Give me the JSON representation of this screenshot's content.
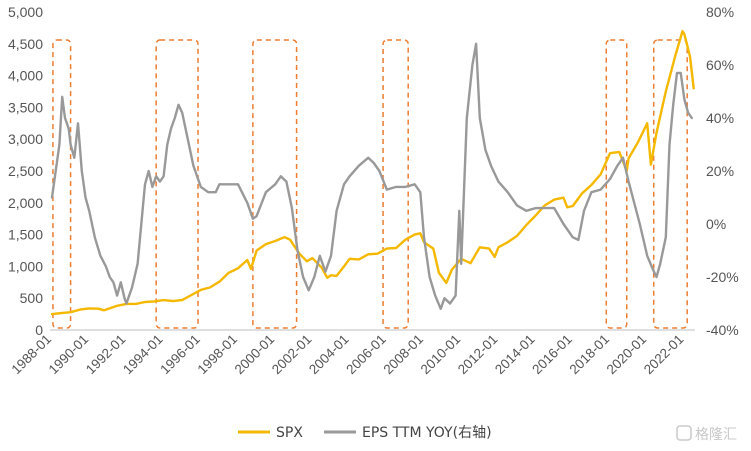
{
  "chart_data": {
    "type": "line",
    "x_ticks": [
      "1988-01",
      "1990-01",
      "1992-01",
      "1994-01",
      "1996-01",
      "1998-01",
      "2000-01",
      "2002-01",
      "2004-01",
      "2006-01",
      "2008-01",
      "2010-01",
      "2012-01",
      "2014-01",
      "2016-01",
      "2018-01",
      "2020-01",
      "2022-01"
    ],
    "y_left": {
      "min": 0,
      "max": 5000,
      "ticks": [
        "0",
        "500",
        "1,000",
        "1,500",
        "2,000",
        "2,500",
        "3,000",
        "3,500",
        "4,000",
        "4,500",
        "5,000"
      ]
    },
    "y_right": {
      "min": -40,
      "max": 80,
      "ticks": [
        "-40%",
        "-20%",
        "0%",
        "20%",
        "40%",
        "60%",
        "80%"
      ]
    },
    "series": [
      {
        "name": "SPX",
        "axis": "left",
        "color": "#F5B800",
        "points": [
          [
            1988.0,
            250
          ],
          [
            1988.5,
            265
          ],
          [
            1989.0,
            280
          ],
          [
            1989.5,
            320
          ],
          [
            1990.0,
            340
          ],
          [
            1990.5,
            335
          ],
          [
            1990.8,
            310
          ],
          [
            1991.0,
            330
          ],
          [
            1991.5,
            380
          ],
          [
            1992.0,
            410
          ],
          [
            1992.5,
            410
          ],
          [
            1993.0,
            440
          ],
          [
            1993.5,
            450
          ],
          [
            1994.0,
            470
          ],
          [
            1994.5,
            455
          ],
          [
            1995.0,
            470
          ],
          [
            1995.5,
            550
          ],
          [
            1996.0,
            630
          ],
          [
            1996.5,
            670
          ],
          [
            1997.0,
            760
          ],
          [
            1997.5,
            900
          ],
          [
            1998.0,
            970
          ],
          [
            1998.5,
            1100
          ],
          [
            1998.7,
            960
          ],
          [
            1999.0,
            1250
          ],
          [
            1999.5,
            1350
          ],
          [
            2000.0,
            1400
          ],
          [
            2000.5,
            1460
          ],
          [
            2000.8,
            1420
          ],
          [
            2001.0,
            1330
          ],
          [
            2001.3,
            1200
          ],
          [
            2001.7,
            1080
          ],
          [
            2002.0,
            1130
          ],
          [
            2002.5,
            980
          ],
          [
            2002.8,
            820
          ],
          [
            2003.0,
            860
          ],
          [
            2003.3,
            850
          ],
          [
            2003.7,
            1000
          ],
          [
            2004.0,
            1120
          ],
          [
            2004.5,
            1110
          ],
          [
            2005.0,
            1190
          ],
          [
            2005.5,
            1200
          ],
          [
            2006.0,
            1280
          ],
          [
            2006.5,
            1290
          ],
          [
            2007.0,
            1420
          ],
          [
            2007.5,
            1500
          ],
          [
            2007.8,
            1520
          ],
          [
            2008.0,
            1380
          ],
          [
            2008.5,
            1280
          ],
          [
            2008.8,
            900
          ],
          [
            2009.0,
            820
          ],
          [
            2009.2,
            740
          ],
          [
            2009.5,
            950
          ],
          [
            2010.0,
            1120
          ],
          [
            2010.5,
            1050
          ],
          [
            2011.0,
            1300
          ],
          [
            2011.5,
            1280
          ],
          [
            2011.8,
            1150
          ],
          [
            2012.0,
            1300
          ],
          [
            2012.5,
            1380
          ],
          [
            2013.0,
            1480
          ],
          [
            2013.5,
            1650
          ],
          [
            2014.0,
            1800
          ],
          [
            2014.5,
            1960
          ],
          [
            2015.0,
            2050
          ],
          [
            2015.5,
            2080
          ],
          [
            2015.7,
            1930
          ],
          [
            2016.0,
            1950
          ],
          [
            2016.5,
            2150
          ],
          [
            2017.0,
            2280
          ],
          [
            2017.5,
            2450
          ],
          [
            2018.0,
            2780
          ],
          [
            2018.5,
            2800
          ],
          [
            2018.9,
            2500
          ],
          [
            2019.0,
            2700
          ],
          [
            2019.5,
            2950
          ],
          [
            2020.0,
            3250
          ],
          [
            2020.2,
            2600
          ],
          [
            2020.5,
            3100
          ],
          [
            2021.0,
            3750
          ],
          [
            2021.5,
            4300
          ],
          [
            2021.9,
            4700
          ],
          [
            2022.0,
            4650
          ],
          [
            2022.3,
            4300
          ],
          [
            2022.5,
            3800
          ]
        ]
      },
      {
        "name": "EPS TTM YOY(右轴)",
        "axis": "right",
        "color": "#999999",
        "points": [
          [
            1988.0,
            10
          ],
          [
            1988.2,
            20
          ],
          [
            1988.4,
            30
          ],
          [
            1988.55,
            48
          ],
          [
            1988.7,
            40
          ],
          [
            1988.9,
            36
          ],
          [
            1989.0,
            30
          ],
          [
            1989.2,
            25
          ],
          [
            1989.4,
            38
          ],
          [
            1989.6,
            20
          ],
          [
            1989.8,
            10
          ],
          [
            1990.0,
            5
          ],
          [
            1990.3,
            -5
          ],
          [
            1990.6,
            -12
          ],
          [
            1990.9,
            -16
          ],
          [
            1991.1,
            -20
          ],
          [
            1991.3,
            -22
          ],
          [
            1991.5,
            -27
          ],
          [
            1991.7,
            -22
          ],
          [
            1991.9,
            -28
          ],
          [
            1992.0,
            -30
          ],
          [
            1992.3,
            -24
          ],
          [
            1992.6,
            -15
          ],
          [
            1992.8,
            0
          ],
          [
            1993.0,
            15
          ],
          [
            1993.2,
            20
          ],
          [
            1993.4,
            14
          ],
          [
            1993.6,
            18
          ],
          [
            1993.8,
            16
          ],
          [
            1994.0,
            18
          ],
          [
            1994.2,
            30
          ],
          [
            1994.4,
            36
          ],
          [
            1994.6,
            40
          ],
          [
            1994.8,
            45
          ],
          [
            1995.0,
            42
          ],
          [
            1995.3,
            32
          ],
          [
            1995.6,
            22
          ],
          [
            1996.0,
            14
          ],
          [
            1996.4,
            12
          ],
          [
            1996.8,
            12
          ],
          [
            1997.0,
            15
          ],
          [
            1997.5,
            15
          ],
          [
            1998.0,
            15
          ],
          [
            1998.5,
            8
          ],
          [
            1998.8,
            2
          ],
          [
            1999.0,
            3
          ],
          [
            1999.5,
            12
          ],
          [
            2000.0,
            15
          ],
          [
            2000.3,
            18
          ],
          [
            2000.6,
            16
          ],
          [
            2000.9,
            6
          ],
          [
            2001.2,
            -10
          ],
          [
            2001.5,
            -20
          ],
          [
            2001.8,
            -25
          ],
          [
            2002.1,
            -20
          ],
          [
            2002.4,
            -12
          ],
          [
            2002.7,
            -18
          ],
          [
            2003.0,
            -12
          ],
          [
            2003.3,
            5
          ],
          [
            2003.7,
            15
          ],
          [
            2004.0,
            18
          ],
          [
            2004.5,
            22
          ],
          [
            2005.0,
            25
          ],
          [
            2005.3,
            23
          ],
          [
            2005.6,
            20
          ],
          [
            2006.0,
            13
          ],
          [
            2006.5,
            14
          ],
          [
            2007.0,
            14
          ],
          [
            2007.5,
            15
          ],
          [
            2007.8,
            12
          ],
          [
            2008.0,
            -5
          ],
          [
            2008.3,
            -20
          ],
          [
            2008.6,
            -27
          ],
          [
            2008.9,
            -32
          ],
          [
            2009.1,
            -28
          ],
          [
            2009.4,
            -30
          ],
          [
            2009.7,
            -27
          ],
          [
            2009.9,
            5
          ],
          [
            2010.0,
            -15
          ],
          [
            2010.3,
            40
          ],
          [
            2010.6,
            60
          ],
          [
            2010.8,
            68
          ],
          [
            2011.0,
            40
          ],
          [
            2011.3,
            28
          ],
          [
            2011.6,
            22
          ],
          [
            2012.0,
            16
          ],
          [
            2012.5,
            12
          ],
          [
            2013.0,
            7
          ],
          [
            2013.5,
            5
          ],
          [
            2014.0,
            6
          ],
          [
            2014.5,
            6
          ],
          [
            2015.0,
            6
          ],
          [
            2015.5,
            0
          ],
          [
            2016.0,
            -5
          ],
          [
            2016.3,
            -6
          ],
          [
            2016.6,
            5
          ],
          [
            2017.0,
            12
          ],
          [
            2017.5,
            13
          ],
          [
            2018.0,
            17
          ],
          [
            2018.4,
            22
          ],
          [
            2018.7,
            25
          ],
          [
            2019.0,
            16
          ],
          [
            2019.3,
            8
          ],
          [
            2019.6,
            0
          ],
          [
            2020.0,
            -12
          ],
          [
            2020.3,
            -17
          ],
          [
            2020.5,
            -20
          ],
          [
            2020.7,
            -15
          ],
          [
            2021.0,
            -5
          ],
          [
            2021.2,
            30
          ],
          [
            2021.4,
            45
          ],
          [
            2021.6,
            57
          ],
          [
            2021.8,
            57
          ],
          [
            2022.0,
            47
          ],
          [
            2022.2,
            42
          ],
          [
            2022.4,
            40
          ]
        ]
      }
    ],
    "highlight_periods": [
      [
        1988.05,
        1989.0
      ],
      [
        1993.6,
        1995.85
      ],
      [
        1998.8,
        2001.15
      ],
      [
        2005.8,
        2007.15
      ],
      [
        2017.8,
        2018.9
      ],
      [
        2020.35,
        2022.15
      ]
    ],
    "legend": [
      "SPX",
      "EPS TTM YOY(右轴)"
    ],
    "legend_position": "bottom-center",
    "grid": false
  },
  "watermark": "格隆汇"
}
